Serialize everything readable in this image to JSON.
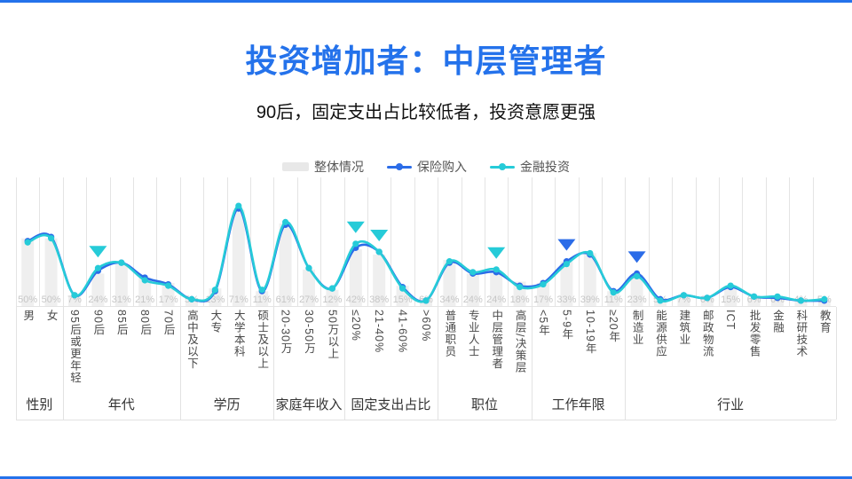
{
  "slide": {
    "title": "投资增加者：中层管理者",
    "subtitle": "90后，固定支出占比较低者，投资意愿更强",
    "accent_color": "#2472EB"
  },
  "legend": [
    {
      "label": "整体情况",
      "type": "bar",
      "color": "#e8e8e8"
    },
    {
      "label": "保险购入",
      "type": "line",
      "color": "#2B6CE8"
    },
    {
      "label": "金融投资",
      "type": "line",
      "color": "#26CBD8"
    }
  ],
  "chart_data": {
    "type": "bar+line",
    "ylim": [
      0,
      95
    ],
    "value_label_format": "{v}%",
    "colors": {
      "bar": "#efefef",
      "bar_label": "#c6c6c6",
      "grid": "#e4e4e4",
      "line_blue": "#2B6CE8",
      "line_cyan": "#26CBD8"
    },
    "groups": [
      {
        "label": "性别",
        "span": 2
      },
      {
        "label": "年代",
        "span": 5
      },
      {
        "label": "学历",
        "span": 4
      },
      {
        "label": "家庭年收入",
        "span": 3
      },
      {
        "label": "固定支出占比",
        "span": 4
      },
      {
        "label": "职位",
        "span": 4
      },
      {
        "label": "工作年限",
        "span": 4
      },
      {
        "label": "行业",
        "span": 9
      }
    ],
    "categories": [
      "男",
      "女",
      "95后或更年轻",
      "90后",
      "85后",
      "80后",
      "70后",
      "高中及以下",
      "大专",
      "大学本科",
      "硕士及以上",
      "20-30万",
      "30-50万",
      "50万以上",
      "≤20%",
      "21-40%",
      "41-60%",
      ">60%",
      "普通职员",
      "专业人士",
      "中层管理者",
      "高层/决策层",
      "<5年",
      "5-9年",
      "10-19年",
      "≥20年",
      "制造业",
      "能源供应",
      "建筑业",
      "邮政物流",
      "ICT",
      "批发零售",
      "金融",
      "科研技术",
      "教育"
    ],
    "bar_series": {
      "name": "整体情况",
      "values": [
        50,
        50,
        7,
        24,
        31,
        21,
        17,
        5,
        13,
        71,
        11,
        61,
        27,
        12,
        42,
        38,
        15,
        6,
        34,
        24,
        24,
        18,
        17,
        33,
        39,
        11,
        23,
        5,
        7,
        6,
        15,
        6,
        6,
        4,
        5
      ]
    },
    "series": [
      {
        "name": "保险购入",
        "color": "#2B6CE8",
        "values": [
          48,
          51,
          8,
          26,
          32,
          21,
          16,
          5,
          11,
          72,
          11,
          60,
          28,
          13,
          43,
          40,
          14,
          4,
          32,
          24,
          25,
          15,
          17,
          33,
          38,
          11,
          24,
          5,
          8,
          6,
          14,
          7,
          6,
          4,
          4
        ]
      },
      {
        "name": "金融投资",
        "color": "#26CBD8",
        "values": [
          47,
          50,
          8,
          28,
          32,
          19,
          15,
          5,
          12,
          74,
          12,
          62,
          28,
          13,
          46,
          40,
          13,
          4,
          33,
          25,
          27,
          14,
          16,
          31,
          39,
          10,
          22,
          4,
          8,
          6,
          15,
          7,
          7,
          4,
          5
        ]
      }
    ],
    "markers": [
      {
        "category": "90后",
        "series": "金融投资"
      },
      {
        "category": "≤20%",
        "series": "金融投资"
      },
      {
        "category": "21-40%",
        "series": "金融投资"
      },
      {
        "category": "中层管理者",
        "series": "金融投资"
      },
      {
        "category": "5-9年",
        "series": "保险购入"
      },
      {
        "category": "制造业",
        "series": "保险购入"
      }
    ]
  }
}
